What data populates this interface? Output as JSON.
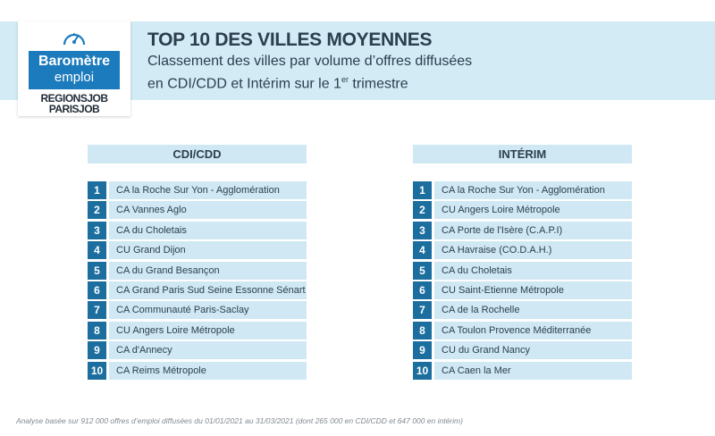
{
  "logo": {
    "line1": "Baromètre",
    "line2": "emploi",
    "brand1": "REGIONSJOB",
    "brand2": "PARISJOB",
    "icon": "gauge-icon"
  },
  "header": {
    "title": "TOP 10 DES VILLES MOYENNES",
    "subtitle_line1": "Classement des villes par volume d’offres diffusées",
    "subtitle_line2_before": "en CDI/CDD et Intérim sur le 1",
    "subtitle_sup": "er",
    "subtitle_line2_after": " trimestre"
  },
  "cdi_cdd": {
    "heading": "CDI/CDD",
    "items": [
      {
        "rank": "1",
        "name": "CA la Roche Sur Yon - Agglomération"
      },
      {
        "rank": "2",
        "name": "CA Vannes Aglo"
      },
      {
        "rank": "3",
        "name": "CA du Choletais"
      },
      {
        "rank": "4",
        "name": "CU Grand Dijon"
      },
      {
        "rank": "5",
        "name": "CA du Grand Besançon"
      },
      {
        "rank": "6",
        "name": "CA Grand Paris Sud Seine Essonne Sénart"
      },
      {
        "rank": "7",
        "name": "CA Communauté Paris-Saclay"
      },
      {
        "rank": "8",
        "name": "CU Angers Loire Métropole"
      },
      {
        "rank": "9",
        "name": "CA d'Annecy"
      },
      {
        "rank": "10",
        "name": "CA Reims Métropole"
      }
    ]
  },
  "interim": {
    "heading": "INTÉRIM",
    "items": [
      {
        "rank": "1",
        "name": "CA la Roche Sur Yon - Agglomération"
      },
      {
        "rank": "2",
        "name": "CU Angers Loire Métropole"
      },
      {
        "rank": "3",
        "name": "CA Porte de l'Isère (C.A.P.I)"
      },
      {
        "rank": "4",
        "name": "CA Havraise (CO.D.A.H.)"
      },
      {
        "rank": "5",
        "name": "CA du Choletais"
      },
      {
        "rank": "6",
        "name": "CU Saint-Etienne Métropole"
      },
      {
        "rank": "7",
        "name": "CA de la Rochelle"
      },
      {
        "rank": "8",
        "name": "CA Toulon Provence Méditerranée"
      },
      {
        "rank": "9",
        "name": "CU du Grand Nancy"
      },
      {
        "rank": "10",
        "name": "CA Caen la Mer"
      }
    ]
  },
  "footnote": "Analyse basée sur 912 000 offres d’emploi diffusées du 01/01/2021 au 31/03/2021 (dont 265 000 en CDI/CDD et 647 000 en intérim)",
  "colors": {
    "header_bg": "#d2ebf5",
    "rank_box": "#1c6e9f",
    "row_bg": "#cfe8f3",
    "brand_blue": "#1c7bbd",
    "text": "#2d3e4f"
  }
}
